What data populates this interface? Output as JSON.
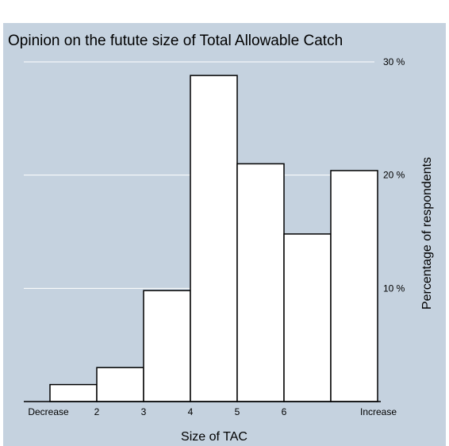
{
  "chart_data": {
    "type": "bar",
    "title": "Opinion on the futute size of Total Allowable Catch",
    "xlabel": "Size of TAC",
    "ylabel": "Percentage of respondents",
    "categories": [
      "Decrease",
      "2",
      "3",
      "4",
      "5",
      "6",
      "Increase"
    ],
    "values": [
      1.5,
      3.0,
      9.8,
      28.8,
      21.0,
      14.8,
      20.4
    ],
    "ylim": [
      0,
      30
    ],
    "yticks": [
      10,
      20,
      30
    ],
    "ytick_labels": [
      "10 %",
      "20 %",
      "30 %"
    ],
    "y_axis_position": "right",
    "grid": true,
    "colors": {
      "background": "#c5d2df",
      "bar_fill": "#ffffff",
      "bar_stroke": "#000000",
      "grid": "#ffffff"
    }
  }
}
